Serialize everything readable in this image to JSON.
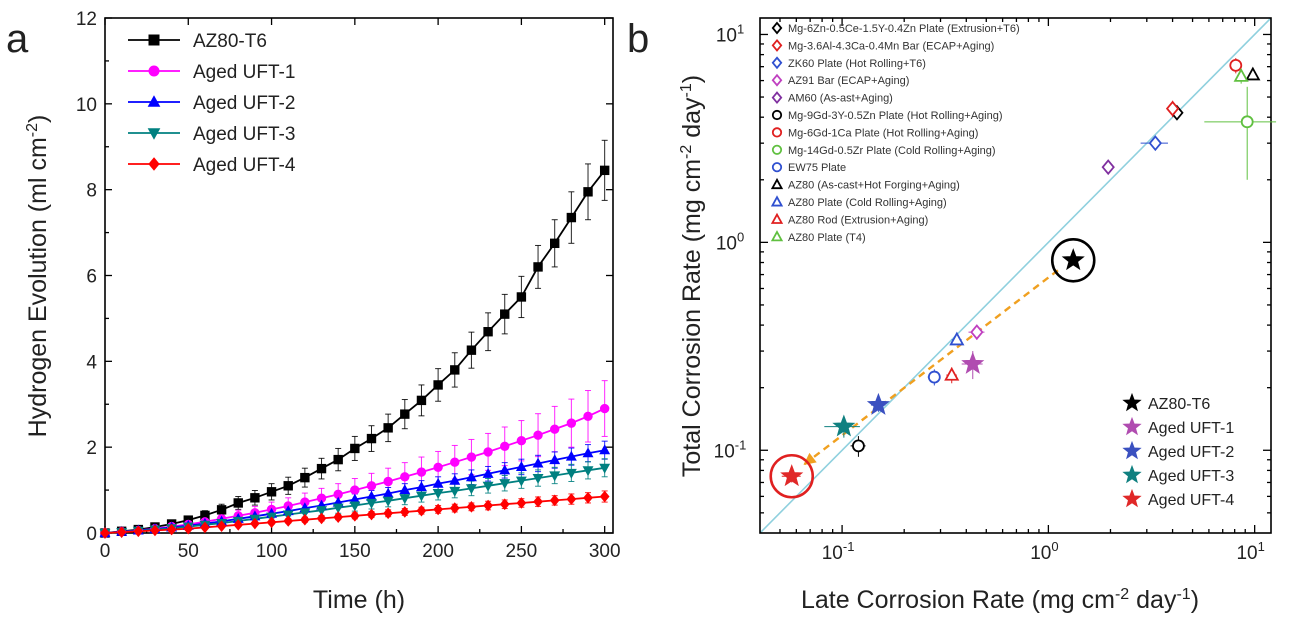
{
  "panels": {
    "a": {
      "letter": "a"
    },
    "b": {
      "letter": "b"
    }
  },
  "chart_data": [
    {
      "type": "line",
      "panel": "a",
      "xlabel": "Time (h)",
      "ylabel_main": "Hydrogen Evolution (ml cm",
      "ylabel_sup": "-2",
      "ylabel_end": ")",
      "xlim": [
        0,
        305
      ],
      "ylim": [
        0,
        12
      ],
      "xticks": [
        0,
        50,
        100,
        150,
        200,
        250,
        300
      ],
      "yticks": [
        0,
        2,
        4,
        6,
        8,
        10,
        12
      ],
      "legend_position": "top-left",
      "series": [
        {
          "name": "AZ80-T6",
          "color": "#000000",
          "marker": "square",
          "x": [
            0,
            10,
            20,
            30,
            40,
            50,
            60,
            70,
            80,
            90,
            100,
            110,
            120,
            130,
            140,
            150,
            160,
            170,
            180,
            190,
            200,
            210,
            220,
            230,
            240,
            250,
            260,
            270,
            280,
            290,
            300
          ],
          "y": [
            0.0,
            0.04,
            0.08,
            0.14,
            0.21,
            0.3,
            0.41,
            0.54,
            0.7,
            0.82,
            0.96,
            1.1,
            1.29,
            1.5,
            1.71,
            1.97,
            2.2,
            2.45,
            2.77,
            3.09,
            3.45,
            3.8,
            4.26,
            4.69,
            5.1,
            5.5,
            6.2,
            6.75,
            7.35,
            7.95,
            8.45
          ],
          "err": [
            0.0,
            0.02,
            0.03,
            0.05,
            0.07,
            0.09,
            0.11,
            0.13,
            0.15,
            0.17,
            0.19,
            0.2,
            0.22,
            0.24,
            0.26,
            0.28,
            0.3,
            0.32,
            0.34,
            0.36,
            0.38,
            0.4,
            0.42,
            0.44,
            0.46,
            0.48,
            0.5,
            0.55,
            0.6,
            0.65,
            0.7
          ]
        },
        {
          "name": "Aged UFT-1",
          "color": "#ff00ff",
          "marker": "circle",
          "x": [
            0,
            10,
            20,
            30,
            40,
            50,
            60,
            70,
            80,
            90,
            100,
            110,
            120,
            130,
            140,
            150,
            160,
            170,
            180,
            190,
            200,
            210,
            220,
            230,
            240,
            250,
            260,
            270,
            280,
            290,
            300
          ],
          "y": [
            0.0,
            0.03,
            0.06,
            0.1,
            0.15,
            0.2,
            0.26,
            0.33,
            0.4,
            0.47,
            0.55,
            0.63,
            0.72,
            0.81,
            0.9,
            1.0,
            1.1,
            1.2,
            1.31,
            1.42,
            1.53,
            1.65,
            1.77,
            1.89,
            2.02,
            2.15,
            2.28,
            2.42,
            2.56,
            2.72,
            2.9
          ],
          "err": [
            0.0,
            0.02,
            0.03,
            0.04,
            0.05,
            0.07,
            0.09,
            0.11,
            0.13,
            0.15,
            0.17,
            0.19,
            0.21,
            0.23,
            0.25,
            0.27,
            0.29,
            0.31,
            0.33,
            0.35,
            0.37,
            0.39,
            0.41,
            0.43,
            0.45,
            0.47,
            0.5,
            0.53,
            0.56,
            0.6,
            0.65
          ]
        },
        {
          "name": "Aged UFT-2",
          "color": "#0000ff",
          "marker": "triangle-up",
          "x": [
            0,
            10,
            20,
            30,
            40,
            50,
            60,
            70,
            80,
            90,
            100,
            110,
            120,
            130,
            140,
            150,
            160,
            170,
            180,
            190,
            200,
            210,
            220,
            230,
            240,
            250,
            260,
            270,
            280,
            290,
            300
          ],
          "y": [
            0.0,
            0.03,
            0.06,
            0.09,
            0.13,
            0.17,
            0.22,
            0.27,
            0.33,
            0.39,
            0.45,
            0.51,
            0.58,
            0.64,
            0.71,
            0.78,
            0.85,
            0.92,
            1.0,
            1.07,
            1.15,
            1.22,
            1.3,
            1.38,
            1.46,
            1.54,
            1.62,
            1.7,
            1.78,
            1.86,
            1.93
          ],
          "err": [
            0.0,
            0.02,
            0.02,
            0.03,
            0.04,
            0.05,
            0.06,
            0.07,
            0.08,
            0.09,
            0.1,
            0.11,
            0.12,
            0.12,
            0.13,
            0.13,
            0.14,
            0.14,
            0.15,
            0.15,
            0.16,
            0.16,
            0.17,
            0.17,
            0.18,
            0.18,
            0.19,
            0.19,
            0.2,
            0.2,
            0.21
          ]
        },
        {
          "name": "Aged UFT-3",
          "color": "#008080",
          "marker": "triangle-down",
          "x": [
            0,
            10,
            20,
            30,
            40,
            50,
            60,
            70,
            80,
            90,
            100,
            110,
            120,
            130,
            140,
            150,
            160,
            170,
            180,
            190,
            200,
            210,
            220,
            230,
            240,
            250,
            260,
            270,
            280,
            290,
            300
          ],
          "y": [
            0.0,
            0.02,
            0.05,
            0.08,
            0.11,
            0.15,
            0.19,
            0.23,
            0.28,
            0.33,
            0.38,
            0.43,
            0.48,
            0.53,
            0.59,
            0.64,
            0.7,
            0.75,
            0.81,
            0.87,
            0.93,
            0.98,
            1.04,
            1.1,
            1.16,
            1.22,
            1.28,
            1.34,
            1.4,
            1.46,
            1.52
          ],
          "err": [
            0.0,
            0.02,
            0.02,
            0.03,
            0.04,
            0.05,
            0.06,
            0.07,
            0.08,
            0.09,
            0.1,
            0.11,
            0.12,
            0.12,
            0.13,
            0.13,
            0.14,
            0.14,
            0.15,
            0.15,
            0.16,
            0.16,
            0.17,
            0.17,
            0.18,
            0.18,
            0.19,
            0.19,
            0.2,
            0.2,
            0.21
          ]
        },
        {
          "name": "Aged UFT-4",
          "color": "#ff0000",
          "marker": "diamond",
          "x": [
            0,
            10,
            20,
            30,
            40,
            50,
            60,
            70,
            80,
            90,
            100,
            110,
            120,
            130,
            140,
            150,
            160,
            170,
            180,
            190,
            200,
            210,
            220,
            230,
            240,
            250,
            260,
            270,
            280,
            290,
            300
          ],
          "y": [
            0.0,
            0.02,
            0.04,
            0.06,
            0.08,
            0.1,
            0.13,
            0.16,
            0.19,
            0.22,
            0.25,
            0.28,
            0.31,
            0.34,
            0.37,
            0.4,
            0.43,
            0.46,
            0.49,
            0.52,
            0.55,
            0.58,
            0.61,
            0.64,
            0.67,
            0.7,
            0.73,
            0.76,
            0.79,
            0.82,
            0.85
          ],
          "err": [
            0.0,
            0.01,
            0.01,
            0.02,
            0.02,
            0.02,
            0.03,
            0.03,
            0.04,
            0.04,
            0.05,
            0.05,
            0.06,
            0.06,
            0.06,
            0.07,
            0.07,
            0.08,
            0.08,
            0.08,
            0.09,
            0.09,
            0.09,
            0.1,
            0.1,
            0.1,
            0.11,
            0.11,
            0.12,
            0.12,
            0.13
          ]
        }
      ]
    },
    {
      "type": "scatter",
      "panel": "b",
      "scale": "log-log",
      "xlabel_main": "Late Corrosion Rate (mg cm",
      "xlabel_sup1": "-2",
      "xlabel_mid": " day",
      "xlabel_sup2": "-1",
      "xlabel_end": ")",
      "ylabel_main": "Total Corrosion Rate (mg cm",
      "ylabel_sup1": "-2",
      "ylabel_mid": " day",
      "ylabel_sup2": "-1",
      "ylabel_end": ")",
      "xlim": [
        0.04,
        12
      ],
      "ylim": [
        0.04,
        12
      ],
      "xticks": [
        {
          "value": 0.1,
          "base": "10",
          "exp": "-1"
        },
        {
          "value": 1,
          "base": "10",
          "exp": "0"
        },
        {
          "value": 10,
          "base": "10",
          "exp": "1"
        }
      ],
      "yticks": [
        {
          "value": 0.1,
          "base": "10",
          "exp": "-1"
        },
        {
          "value": 1,
          "base": "10",
          "exp": "0"
        },
        {
          "value": 10,
          "base": "10",
          "exp": "1"
        }
      ],
      "reference_line": {
        "type": "y=x",
        "color": "#8fd0de"
      },
      "arrow": {
        "from": [
          1.3,
          0.82
        ],
        "to": [
          0.065,
          0.085
        ],
        "color": "#f0a020"
      },
      "highlight_circles": [
        {
          "x": 1.32,
          "y": 0.82,
          "color": "#000000"
        },
        {
          "x": 0.057,
          "y": 0.075,
          "color": "#e02020"
        }
      ],
      "literature_legend_position": "top-left",
      "literature": [
        {
          "name": "Mg-6Zn-0.5Ce-1.5Y-0.4Zn Plate (Extrusion+T6)",
          "marker": "diamond",
          "color": "#000000",
          "x": 4.2,
          "y": 4.2,
          "xerr": 0.25,
          "yerr": 0.3
        },
        {
          "name": "Mg-3.6Al-4.3Ca-0.4Mn Bar (ECAP+Aging)",
          "marker": "diamond",
          "color": "#e02020",
          "x": 4.0,
          "y": 4.4,
          "xerr": 0.2,
          "yerr": 0.4
        },
        {
          "name": "ZK60 Plate (Hot Rolling+T6)",
          "marker": "diamond",
          "color": "#3050d0",
          "x": 3.3,
          "y": 3.0,
          "xerr": 0.5,
          "yerr": 0.2
        },
        {
          "name": "AZ91 Bar (ECAP+Aging)",
          "marker": "diamond",
          "color": "#c040c0",
          "x": 0.45,
          "y": 0.37,
          "xerr": 0.04,
          "yerr": 0.03
        },
        {
          "name": "AM60 (As-ast+Aging)",
          "marker": "diamond",
          "color": "#8030a0",
          "x": 1.95,
          "y": 2.3,
          "xerr": 0.1,
          "yerr": 0.15
        },
        {
          "name": "Mg-9Gd-3Y-0.5Zn Plate (Hot Rolling+Aging)",
          "marker": "circle",
          "color": "#000000",
          "x": 0.12,
          "y": 0.105,
          "xerr": 0.01,
          "yerr": 0.012
        },
        {
          "name": "Mg-6Gd-1Ca Plate (Hot Rolling+Aging)",
          "marker": "circle",
          "color": "#e02020",
          "x": 8.1,
          "y": 7.1,
          "xerr": 0.5,
          "yerr": 0.6
        },
        {
          "name": "Mg-14Gd-0.5Zr Plate (Cold Rolling+Aging)",
          "marker": "circle",
          "color": "#60c040",
          "x": 9.2,
          "y": 3.8,
          "xerr": 3.5,
          "yerr": 1.8
        },
        {
          "name": "EW75 Plate",
          "marker": "circle",
          "color": "#3050d0",
          "x": 0.28,
          "y": 0.225,
          "xerr": 0.02,
          "yerr": 0.02
        },
        {
          "name": "AZ80 (As-cast+Hot Forging+Aging)",
          "marker": "triangle",
          "color": "#000000",
          "x": 9.8,
          "y": 6.4,
          "xerr": 0,
          "yerr": 0
        },
        {
          "name": "AZ80 Plate (Cold Rolling+Aging)",
          "marker": "triangle",
          "color": "#3050d0",
          "x": 0.36,
          "y": 0.34,
          "xerr": 0.02,
          "yerr": 0.02
        },
        {
          "name": "AZ80 Rod (Extrusion+Aging)",
          "marker": "triangle",
          "color": "#e02020",
          "x": 0.34,
          "y": 0.23,
          "xerr": 0.02,
          "yerr": 0.02
        },
        {
          "name": "AZ80 Plate (T4)",
          "marker": "triangle",
          "color": "#60c040",
          "x": 8.6,
          "y": 6.3,
          "xerr": 0.4,
          "yerr": 0.5
        }
      ],
      "present_legend_position": "bottom-right",
      "present": [
        {
          "name": "AZ80-T6",
          "color": "#000000",
          "x": 1.32,
          "y": 0.82,
          "xerr": 0.05,
          "yerr": 0.03
        },
        {
          "name": "Aged UFT-1",
          "color": "#b04cb0",
          "x": 0.43,
          "y": 0.26,
          "xerr": 0.05,
          "yerr": 0.04
        },
        {
          "name": "Aged UFT-2",
          "color": "#3a50c0",
          "x": 0.15,
          "y": 0.165,
          "xerr": 0.012,
          "yerr": 0.012
        },
        {
          "name": "Aged UFT-3",
          "color": "#108080",
          "x": 0.102,
          "y": 0.13,
          "xerr": 0.02,
          "yerr": 0.015
        },
        {
          "name": "Aged UFT-4",
          "color": "#e02828",
          "x": 0.057,
          "y": 0.075,
          "xerr": 0.006,
          "yerr": 0.005
        }
      ]
    }
  ]
}
